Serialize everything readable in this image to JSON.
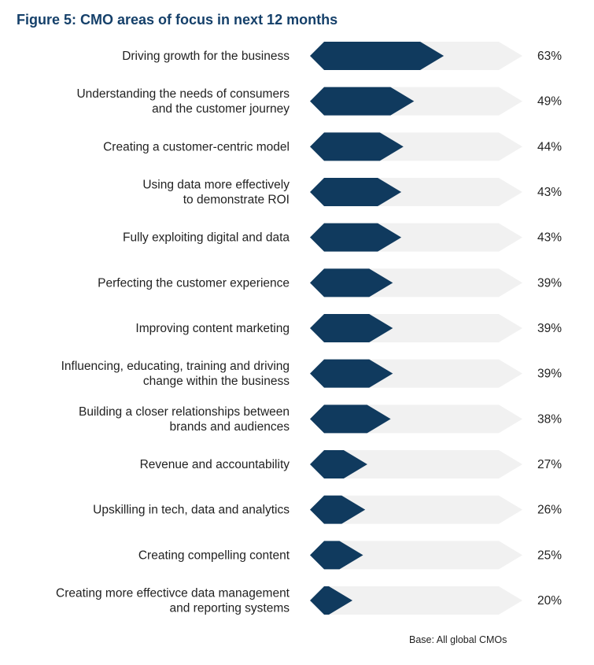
{
  "title": "Figure 5: CMO areas of focus in next 12 months",
  "footnote": "Base: All global CMOs",
  "colors": {
    "bar": "#103a5e",
    "track": "#f1f1f1",
    "title": "#15406a"
  },
  "chart_data": {
    "type": "bar",
    "orientation": "horizontal",
    "title": "Figure 5: CMO areas of focus in next 12 months",
    "xlim": [
      0,
      100
    ],
    "grid": false,
    "legend": "none",
    "categories": [
      [
        "Driving growth for the business"
      ],
      [
        "Understanding the needs of consumers",
        "and the customer journey"
      ],
      [
        "Creating a customer-centric model"
      ],
      [
        "Using data more effectively",
        "to demonstrate ROI"
      ],
      [
        "Fully exploiting digital and data"
      ],
      [
        "Perfecting the customer experience"
      ],
      [
        "Improving content marketing"
      ],
      [
        "Influencing, educating, training and driving",
        "change within the business"
      ],
      [
        "Building a closer relationships between",
        "brands and audiences"
      ],
      [
        "Revenue and accountability"
      ],
      [
        "Upskilling in tech, data and analytics"
      ],
      [
        "Creating compelling content"
      ],
      [
        "Creating more effectivce data management",
        "and reporting systems"
      ]
    ],
    "values": [
      63,
      49,
      44,
      43,
      43,
      39,
      39,
      39,
      38,
      27,
      26,
      25,
      20
    ],
    "value_labels": [
      "63%",
      "49%",
      "44%",
      "43%",
      "43%",
      "39%",
      "39%",
      "39%",
      "38%",
      "27%",
      "26%",
      "25%",
      "20%"
    ]
  }
}
